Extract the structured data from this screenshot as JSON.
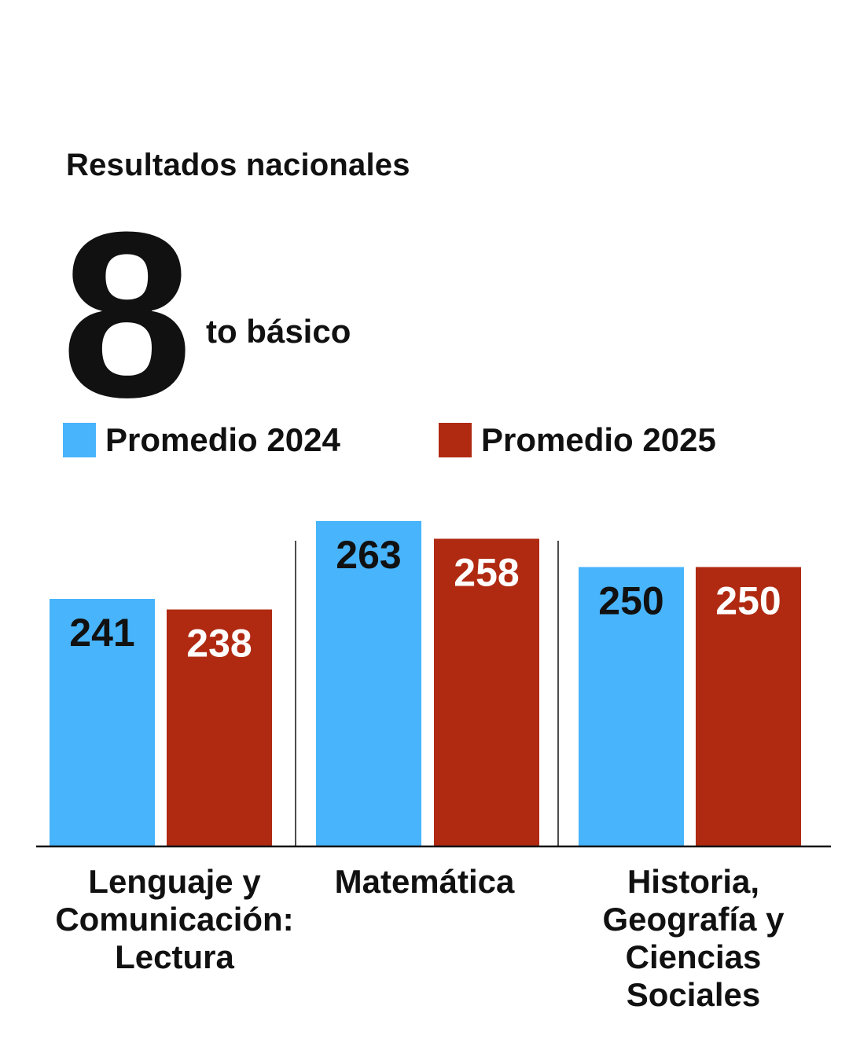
{
  "header": {
    "subtitle": "Resultados nacionales",
    "grade_number": "8",
    "grade_suffix": "to básico"
  },
  "colors": {
    "series_2024": "#48b4fb",
    "series_2025": "#b02a12",
    "axis": "#111111",
    "label_on_2024": "#111111",
    "label_on_2025": "#ffffff"
  },
  "chart_data": {
    "type": "bar",
    "title": "Resultados nacionales 8 to básico",
    "categories": [
      "Lenguaje y Comunicación: Lectura",
      "Matemática",
      "Historia, Geografía y Ciencias Sociales"
    ],
    "category_lines": [
      [
        "Lenguaje y",
        "Comunicación:",
        "Lectura"
      ],
      [
        "Matemática"
      ],
      [
        "Historia,",
        "Geografía y",
        "Ciencias",
        "Sociales"
      ]
    ],
    "series": [
      {
        "name": "Promedio 2024",
        "values": [
          241,
          263,
          250
        ]
      },
      {
        "name": "Promedio 2025",
        "values": [
          238,
          258,
          250
        ]
      }
    ],
    "data_labels": [
      [
        "241",
        "263",
        "250"
      ],
      [
        "238",
        "258",
        "250"
      ]
    ],
    "legend": "top",
    "grid": false
  }
}
